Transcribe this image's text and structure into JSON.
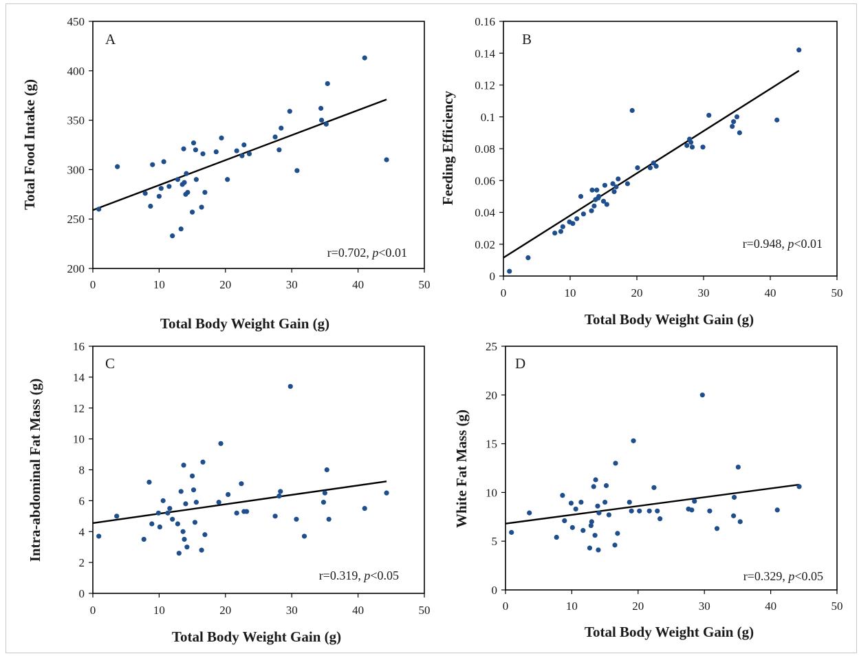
{
  "chart_data": [
    {
      "panel": "A",
      "type": "scatter",
      "panel_label": "A",
      "xlabel": "Total Body Weight Gain (g)",
      "ylabel": "Total Food Intake (g)",
      "xlim": [
        0,
        50
      ],
      "ylim": [
        200,
        450
      ],
      "xticks": [
        "0",
        "10",
        "20",
        "30",
        "40",
        "50"
      ],
      "yticks": [
        "200",
        "250",
        "300",
        "350",
        "400",
        "450"
      ],
      "annotation": {
        "r": "r=0.702, ",
        "p": "p",
        "rest": "<0.01"
      },
      "trendline": {
        "x": [
          0,
          44.3
        ],
        "y": [
          259,
          371
        ]
      },
      "marker_color": "#1f4e8c",
      "points": {
        "x": [
          0.9,
          3.7,
          7.9,
          8.7,
          9.0,
          10.0,
          10.3,
          10.7,
          11.5,
          12.0,
          12.8,
          13.3,
          13.5,
          13.7,
          13.8,
          14.0,
          14.1,
          14.3,
          15.0,
          15.2,
          15.5,
          15.6,
          16.4,
          16.6,
          16.9,
          18.6,
          19.4,
          20.3,
          21.7,
          22.5,
          22.8,
          23.6,
          27.5,
          28.1,
          28.4,
          29.7,
          30.8,
          34.4,
          34.5,
          35.2,
          35.4,
          41.0,
          44.3
        ],
        "y": [
          260,
          303,
          276,
          263,
          305,
          273,
          281,
          308,
          283,
          233,
          290,
          240,
          285,
          321,
          287,
          275,
          296,
          277,
          257,
          327,
          320,
          290,
          262,
          316,
          277,
          318,
          332,
          290,
          319,
          314,
          325,
          316,
          333,
          320,
          342,
          359,
          299,
          362,
          350,
          346,
          387,
          413,
          310
        ]
      }
    },
    {
      "panel": "B",
      "type": "scatter",
      "panel_label": "B",
      "xlabel": "Total Body Weight Gain (g)",
      "ylabel": "Feeding Efficiency",
      "xlim": [
        0,
        50
      ],
      "ylim": [
        0,
        0.16
      ],
      "xticks": [
        "0",
        "10",
        "20",
        "30",
        "40",
        "50"
      ],
      "yticks": [
        "0",
        "0.02",
        "0.04",
        "0.06",
        "0.08",
        "0.1",
        "0.12",
        "0.14",
        "0.16"
      ],
      "annotation": {
        "r": "r=0.948, ",
        "p": "p",
        "rest": "<0.01"
      },
      "trendline": {
        "x": [
          0,
          44.3
        ],
        "y": [
          0.0115,
          0.129
        ]
      },
      "marker_color": "#1f4e8c",
      "points": {
        "x": [
          0.9,
          3.7,
          7.7,
          8.6,
          8.9,
          9.9,
          10.4,
          11.0,
          11.6,
          12.0,
          13.2,
          13.3,
          13.6,
          13.8,
          14.0,
          14.2,
          14.3,
          15.0,
          15.2,
          15.5,
          16.4,
          16.6,
          16.9,
          17.2,
          18.6,
          19.3,
          20.1,
          22.0,
          22.5,
          22.9,
          27.5,
          27.9,
          28.1,
          28.3,
          29.9,
          30.8,
          34.3,
          34.5,
          35.0,
          35.4,
          41.0,
          44.3
        ],
        "y": [
          0.003,
          0.0115,
          0.027,
          0.028,
          0.031,
          0.034,
          0.033,
          0.036,
          0.05,
          0.039,
          0.041,
          0.054,
          0.044,
          0.048,
          0.054,
          0.049,
          0.05,
          0.047,
          0.057,
          0.045,
          0.058,
          0.053,
          0.056,
          0.061,
          0.058,
          0.104,
          0.068,
          0.068,
          0.071,
          0.069,
          0.082,
          0.086,
          0.084,
          0.081,
          0.081,
          0.101,
          0.094,
          0.097,
          0.1,
          0.09,
          0.098,
          0.142
        ]
      }
    },
    {
      "panel": "C",
      "type": "scatter",
      "panel_label": "C",
      "xlabel": "Total Body Weight Gain (g)",
      "ylabel": "Intra-abdominal  Fat Mass (g)",
      "xlim": [
        0,
        50
      ],
      "ylim": [
        0,
        16
      ],
      "xticks": [
        "0",
        "10",
        "20",
        "30",
        "40",
        "50"
      ],
      "yticks": [
        "0",
        "2",
        "4",
        "6",
        "8",
        "10",
        "12",
        "14",
        "16"
      ],
      "annotation": {
        "r": "r=0.319, ",
        "p": "p",
        "rest": "<0.05"
      },
      "trendline": {
        "x": [
          0,
          44.3
        ],
        "y": [
          4.55,
          7.25
        ]
      },
      "marker_color": "#1f4e8c",
      "points": {
        "x": [
          0.9,
          3.6,
          7.7,
          8.5,
          8.9,
          9.9,
          10.1,
          10.6,
          11.3,
          11.6,
          12.0,
          12.8,
          13.0,
          13.3,
          13.6,
          13.7,
          13.8,
          14.0,
          14.2,
          15.0,
          15.2,
          15.4,
          15.6,
          16.4,
          16.6,
          16.9,
          19.0,
          19.3,
          20.4,
          21.7,
          22.4,
          22.8,
          23.2,
          27.5,
          28.1,
          28.3,
          29.8,
          30.7,
          31.9,
          34.8,
          35.0,
          35.3,
          35.6,
          41.0,
          44.3
        ],
        "y": [
          3.7,
          5.0,
          3.5,
          7.2,
          4.5,
          5.2,
          4.3,
          6.0,
          5.2,
          5.5,
          4.8,
          4.5,
          2.6,
          6.6,
          4.0,
          8.3,
          3.5,
          5.8,
          3.0,
          7.6,
          6.7,
          4.6,
          5.9,
          2.8,
          8.5,
          3.8,
          5.9,
          9.7,
          6.4,
          5.2,
          7.1,
          5.3,
          5.3,
          5.0,
          6.3,
          6.6,
          13.4,
          4.8,
          3.7,
          5.9,
          6.5,
          8.0,
          4.8,
          5.5,
          6.5
        ]
      }
    },
    {
      "panel": "D",
      "type": "scatter",
      "panel_label": "D",
      "xlabel": "Total Body Weight Gain (g)",
      "ylabel": "White Fat Mass (g)",
      "xlim": [
        0,
        50
      ],
      "ylim": [
        0,
        25
      ],
      "xticks": [
        "0",
        "10",
        "20",
        "30",
        "40",
        "50"
      ],
      "yticks": [
        "0",
        "5",
        "10",
        "15",
        "20",
        "25"
      ],
      "annotation": {
        "r": "r=0.329, ",
        "p": "p",
        "rest": "<0.05"
      },
      "trendline": {
        "x": [
          0,
          44.3
        ],
        "y": [
          6.8,
          10.8
        ]
      },
      "marker_color": "#1f4e8c",
      "points": {
        "x": [
          0.9,
          3.6,
          7.7,
          8.6,
          8.9,
          9.9,
          10.1,
          10.6,
          11.4,
          11.7,
          12.7,
          12.9,
          13.0,
          13.3,
          13.5,
          13.6,
          13.9,
          14.0,
          14.1,
          15.0,
          15.2,
          15.6,
          16.5,
          16.6,
          16.9,
          18.7,
          19.0,
          19.3,
          20.2,
          21.7,
          22.4,
          22.9,
          23.3,
          27.6,
          28.1,
          28.5,
          29.7,
          30.8,
          31.9,
          34.4,
          34.5,
          35.1,
          35.4,
          41.0,
          44.3
        ],
        "y": [
          5.9,
          7.9,
          5.4,
          9.7,
          7.1,
          8.9,
          6.4,
          8.3,
          9.0,
          6.1,
          4.3,
          6.6,
          7.0,
          10.6,
          5.6,
          11.3,
          8.6,
          4.1,
          7.9,
          9.0,
          10.7,
          7.7,
          4.6,
          13.0,
          5.8,
          9.0,
          8.1,
          15.3,
          8.1,
          8.1,
          10.5,
          8.1,
          7.3,
          8.3,
          8.2,
          9.1,
          20.0,
          8.1,
          6.3,
          7.6,
          9.5,
          12.6,
          7.0,
          8.2,
          10.6
        ]
      }
    }
  ]
}
